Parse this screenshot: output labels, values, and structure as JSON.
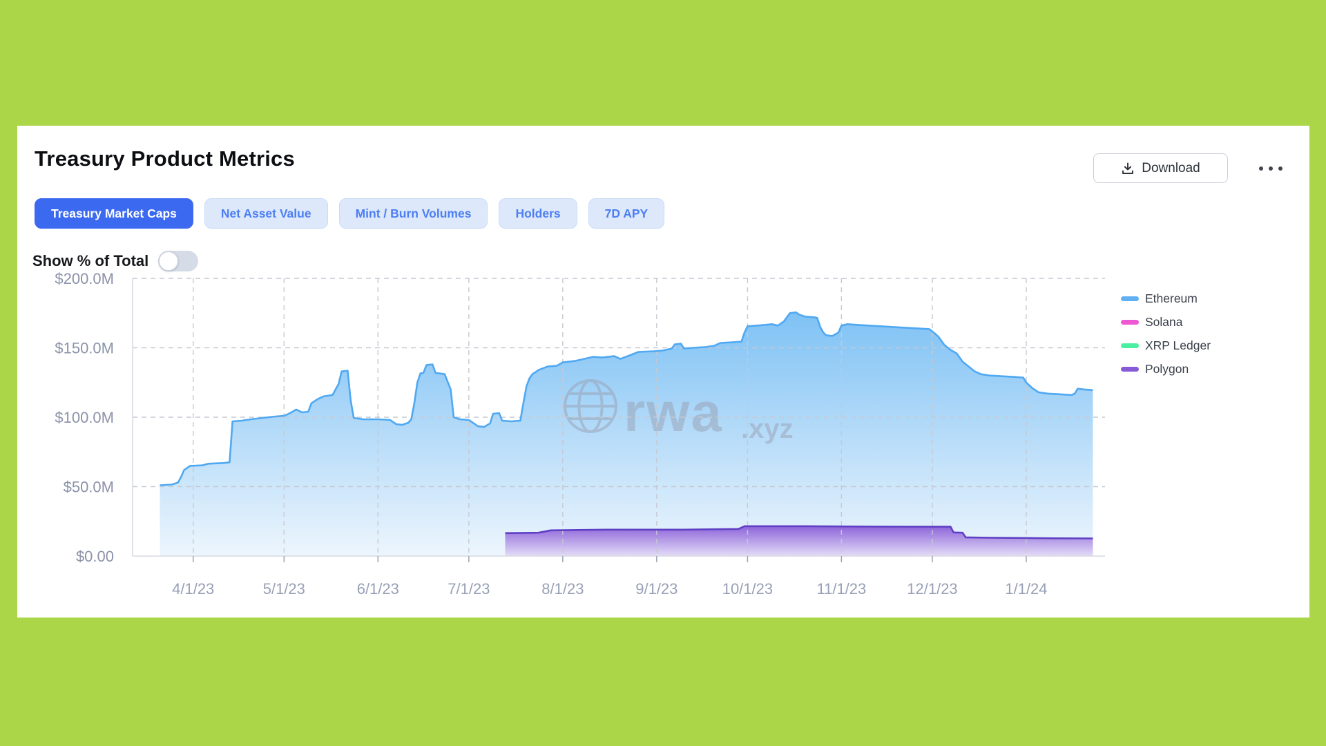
{
  "page": {
    "background": "#abd647",
    "card_background": "#ffffff"
  },
  "header": {
    "title": "Treasury Product Metrics",
    "download_label": "Download",
    "more_options": "..."
  },
  "tabs": [
    {
      "label": "Treasury Market Caps",
      "active": true
    },
    {
      "label": "Net Asset Value",
      "active": false
    },
    {
      "label": "Mint / Burn Volumes",
      "active": false
    },
    {
      "label": "Holders",
      "active": false
    },
    {
      "label": "7D APY",
      "active": false
    }
  ],
  "toggle": {
    "label": "Show % of Total",
    "on": false
  },
  "watermark": {
    "text_main": "rwa",
    "text_suffix": ".xyz",
    "icon": "globe-icon"
  },
  "chart_data": {
    "type": "area",
    "title": "Treasury Market Caps",
    "xlabel": "",
    "ylabel": "",
    "grid": true,
    "legend_position": "right",
    "ylim": [
      0,
      200
    ],
    "x_domain": [
      "2023-03-12",
      "2024-01-27"
    ],
    "y_ticks": [
      {
        "label": "$200.0M",
        "value": 200
      },
      {
        "label": "$150.0M",
        "value": 150
      },
      {
        "label": "$100.0M",
        "value": 100
      },
      {
        "label": "$50.0M",
        "value": 50
      },
      {
        "label": "$0.00",
        "value": 0
      }
    ],
    "x_ticks": [
      {
        "label": "4/1/23",
        "date": "2023-04-01"
      },
      {
        "label": "5/1/23",
        "date": "2023-05-01"
      },
      {
        "label": "6/1/23",
        "date": "2023-06-01"
      },
      {
        "label": "7/1/23",
        "date": "2023-07-01"
      },
      {
        "label": "8/1/23",
        "date": "2023-08-01"
      },
      {
        "label": "9/1/23",
        "date": "2023-09-01"
      },
      {
        "label": "10/1/23",
        "date": "2023-10-01"
      },
      {
        "label": "11/1/23",
        "date": "2023-11-01"
      },
      {
        "label": "12/1/23",
        "date": "2023-12-01"
      },
      {
        "label": "1/1/24",
        "date": "2024-01-01"
      }
    ],
    "series": [
      {
        "name": "Ethereum",
        "legend_color": "#61b1f2",
        "stroke": "#4fa8f2",
        "fill_top": "#79bff4",
        "fill_bottom": "#ecf5fd",
        "unit": "USD millions",
        "points": [
          [
            "2023-03-21",
            51
          ],
          [
            "2023-03-25",
            51.5
          ],
          [
            "2023-03-27",
            53
          ],
          [
            "2023-03-28",
            57
          ],
          [
            "2023-03-29",
            62
          ],
          [
            "2023-03-31",
            65
          ],
          [
            "2023-04-04",
            65.3
          ],
          [
            "2023-04-06",
            66.5
          ],
          [
            "2023-04-11",
            67
          ],
          [
            "2023-04-13",
            67.5
          ],
          [
            "2023-04-14",
            97
          ],
          [
            "2023-04-17",
            97.5
          ],
          [
            "2023-04-20",
            98.5
          ],
          [
            "2023-04-24",
            99.5
          ],
          [
            "2023-04-28",
            100.5
          ],
          [
            "2023-05-01",
            101
          ],
          [
            "2023-05-03",
            103
          ],
          [
            "2023-05-05",
            105.5
          ],
          [
            "2023-05-07",
            103.5
          ],
          [
            "2023-05-09",
            104
          ],
          [
            "2023-05-10",
            110
          ],
          [
            "2023-05-12",
            113
          ],
          [
            "2023-05-14",
            115
          ],
          [
            "2023-05-17",
            116
          ],
          [
            "2023-05-19",
            124
          ],
          [
            "2023-05-20",
            133
          ],
          [
            "2023-05-22",
            133.5
          ],
          [
            "2023-05-23",
            112
          ],
          [
            "2023-05-24",
            99.5
          ],
          [
            "2023-05-27",
            98.5
          ],
          [
            "2023-06-01",
            98.5
          ],
          [
            "2023-06-05",
            98
          ],
          [
            "2023-06-07",
            95
          ],
          [
            "2023-06-09",
            94.5
          ],
          [
            "2023-06-11",
            96
          ],
          [
            "2023-06-12",
            98.5
          ],
          [
            "2023-06-13",
            110
          ],
          [
            "2023-06-14",
            125
          ],
          [
            "2023-06-15",
            131.5
          ],
          [
            "2023-06-16",
            132
          ],
          [
            "2023-06-17",
            137.5
          ],
          [
            "2023-06-19",
            138
          ],
          [
            "2023-06-20",
            132
          ],
          [
            "2023-06-23",
            131
          ],
          [
            "2023-06-25",
            120
          ],
          [
            "2023-06-26",
            100
          ],
          [
            "2023-06-28",
            98.5
          ],
          [
            "2023-07-01",
            98
          ],
          [
            "2023-07-03",
            95
          ],
          [
            "2023-07-04",
            93.5
          ],
          [
            "2023-07-06",
            93
          ],
          [
            "2023-07-08",
            95.5
          ],
          [
            "2023-07-09",
            102.5
          ],
          [
            "2023-07-11",
            103
          ],
          [
            "2023-07-12",
            97.5
          ],
          [
            "2023-07-15",
            97
          ],
          [
            "2023-07-18",
            97.5
          ],
          [
            "2023-07-19",
            110
          ],
          [
            "2023-07-20",
            122
          ],
          [
            "2023-07-21",
            128
          ],
          [
            "2023-07-22",
            131
          ],
          [
            "2023-07-24",
            134
          ],
          [
            "2023-07-27",
            136.5
          ],
          [
            "2023-07-30",
            137
          ],
          [
            "2023-08-01",
            139.5
          ],
          [
            "2023-08-05",
            140.5
          ],
          [
            "2023-08-08",
            142
          ],
          [
            "2023-08-11",
            143.5
          ],
          [
            "2023-08-14",
            143
          ],
          [
            "2023-08-18",
            144
          ],
          [
            "2023-08-20",
            142
          ],
          [
            "2023-08-23",
            144.5
          ],
          [
            "2023-08-26",
            147
          ],
          [
            "2023-08-31",
            147.5
          ],
          [
            "2023-09-03",
            148
          ],
          [
            "2023-09-06",
            149.5
          ],
          [
            "2023-09-07",
            152.5
          ],
          [
            "2023-09-09",
            153
          ],
          [
            "2023-09-10",
            149.5
          ],
          [
            "2023-09-13",
            150
          ],
          [
            "2023-09-17",
            150.5
          ],
          [
            "2023-09-20",
            151.5
          ],
          [
            "2023-09-22",
            153.5
          ],
          [
            "2023-09-26",
            154
          ],
          [
            "2023-09-29",
            154.5
          ],
          [
            "2023-09-30",
            161
          ],
          [
            "2023-10-01",
            165.5
          ],
          [
            "2023-10-04",
            166
          ],
          [
            "2023-10-07",
            166.5
          ],
          [
            "2023-10-09",
            167
          ],
          [
            "2023-10-11",
            166
          ],
          [
            "2023-10-13",
            169
          ],
          [
            "2023-10-14",
            172
          ],
          [
            "2023-10-15",
            175
          ],
          [
            "2023-10-17",
            175.5
          ],
          [
            "2023-10-18",
            174
          ],
          [
            "2023-10-20",
            172.5
          ],
          [
            "2023-10-23",
            172
          ],
          [
            "2023-10-24",
            171.5
          ],
          [
            "2023-10-25",
            165
          ],
          [
            "2023-10-26",
            161
          ],
          [
            "2023-10-27",
            159
          ],
          [
            "2023-10-29",
            158.5
          ],
          [
            "2023-10-31",
            161
          ],
          [
            "2023-11-01",
            166
          ],
          [
            "2023-11-03",
            167
          ],
          [
            "2023-11-06",
            166.5
          ],
          [
            "2023-11-10",
            166
          ],
          [
            "2023-11-14",
            165.5
          ],
          [
            "2023-11-18",
            165
          ],
          [
            "2023-11-22",
            164.5
          ],
          [
            "2023-11-26",
            164
          ],
          [
            "2023-11-30",
            163.5
          ],
          [
            "2023-12-02",
            160
          ],
          [
            "2023-12-03",
            158
          ],
          [
            "2023-12-05",
            152
          ],
          [
            "2023-12-07",
            148.5
          ],
          [
            "2023-12-09",
            146
          ],
          [
            "2023-12-11",
            140
          ],
          [
            "2023-12-13",
            136.5
          ],
          [
            "2023-12-15",
            133
          ],
          [
            "2023-12-17",
            131
          ],
          [
            "2023-12-20",
            130
          ],
          [
            "2023-12-24",
            129.5
          ],
          [
            "2023-12-28",
            129
          ],
          [
            "2023-12-31",
            128.5
          ],
          [
            "2024-01-01",
            125
          ],
          [
            "2024-01-03",
            121
          ],
          [
            "2024-01-05",
            118
          ],
          [
            "2024-01-08",
            117
          ],
          [
            "2024-01-12",
            116.5
          ],
          [
            "2024-01-16",
            116
          ],
          [
            "2024-01-17",
            117
          ],
          [
            "2024-01-18",
            120.5
          ],
          [
            "2024-01-20",
            120
          ],
          [
            "2024-01-23",
            119.5
          ]
        ]
      },
      {
        "name": "Solana",
        "legend_color": "#ee58d5",
        "stroke": "#ee58d5",
        "fill_top": "#f7a8e8",
        "fill_bottom": "#fdeefb",
        "unit": "USD millions",
        "points": []
      },
      {
        "name": "XRP Ledger",
        "legend_color": "#4af0a1",
        "stroke": "#4af0a1",
        "fill_top": "#a0f7cf",
        "fill_bottom": "#ecfdf5",
        "unit": "USD millions",
        "points": []
      },
      {
        "name": "Polygon",
        "legend_color": "#875bd8",
        "stroke": "#5f3fc4",
        "fill_top": "#8a5fd8",
        "fill_bottom": "#e3dbf7",
        "unit": "USD millions",
        "points": [
          [
            "2023-07-13",
            16.5
          ],
          [
            "2023-07-24",
            16.8
          ],
          [
            "2023-07-28",
            18.5
          ],
          [
            "2023-08-15",
            19
          ],
          [
            "2023-09-10",
            19
          ],
          [
            "2023-09-28",
            19.5
          ],
          [
            "2023-09-30",
            21.5
          ],
          [
            "2023-10-20",
            21.5
          ],
          [
            "2023-11-05",
            21.3
          ],
          [
            "2023-11-25",
            21.2
          ],
          [
            "2023-12-07",
            21.2
          ],
          [
            "2023-12-08",
            17
          ],
          [
            "2023-12-11",
            16.8
          ],
          [
            "2023-12-12",
            13.5
          ],
          [
            "2023-12-20",
            13.2
          ],
          [
            "2024-01-01",
            13
          ],
          [
            "2024-01-10",
            12.8
          ],
          [
            "2024-01-23",
            12.7
          ]
        ]
      }
    ]
  }
}
